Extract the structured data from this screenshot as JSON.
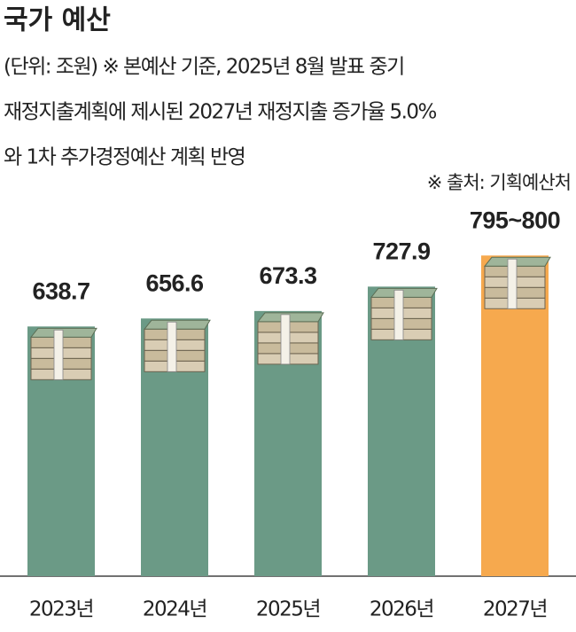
{
  "chart_data": {
    "type": "bar",
    "title": "국가 예산",
    "note": [
      "(단위: 조원) ※ 본예산 기준, 2025년 8월 발표 중기",
      "재정지출계획에 제시된 2027년 재정지출 증가율 5.0%",
      "와 1차 추가경정예산 계획 반영"
    ],
    "source": "※ 출처: 기획예산처",
    "categories": [
      "2023년",
      "2024년",
      "2025년",
      "2026년",
      "2027년"
    ],
    "values": [
      638.7,
      656.6,
      673.3,
      727.9,
      797.5
    ],
    "value_labels": [
      "638.7",
      "656.6",
      "673.3",
      "727.9",
      "795~800"
    ],
    "colors": [
      "#6b9a86",
      "#6b9a86",
      "#6b9a86",
      "#6b9a86",
      "#f6a94e"
    ],
    "ylim": [
      80,
      800
    ]
  }
}
